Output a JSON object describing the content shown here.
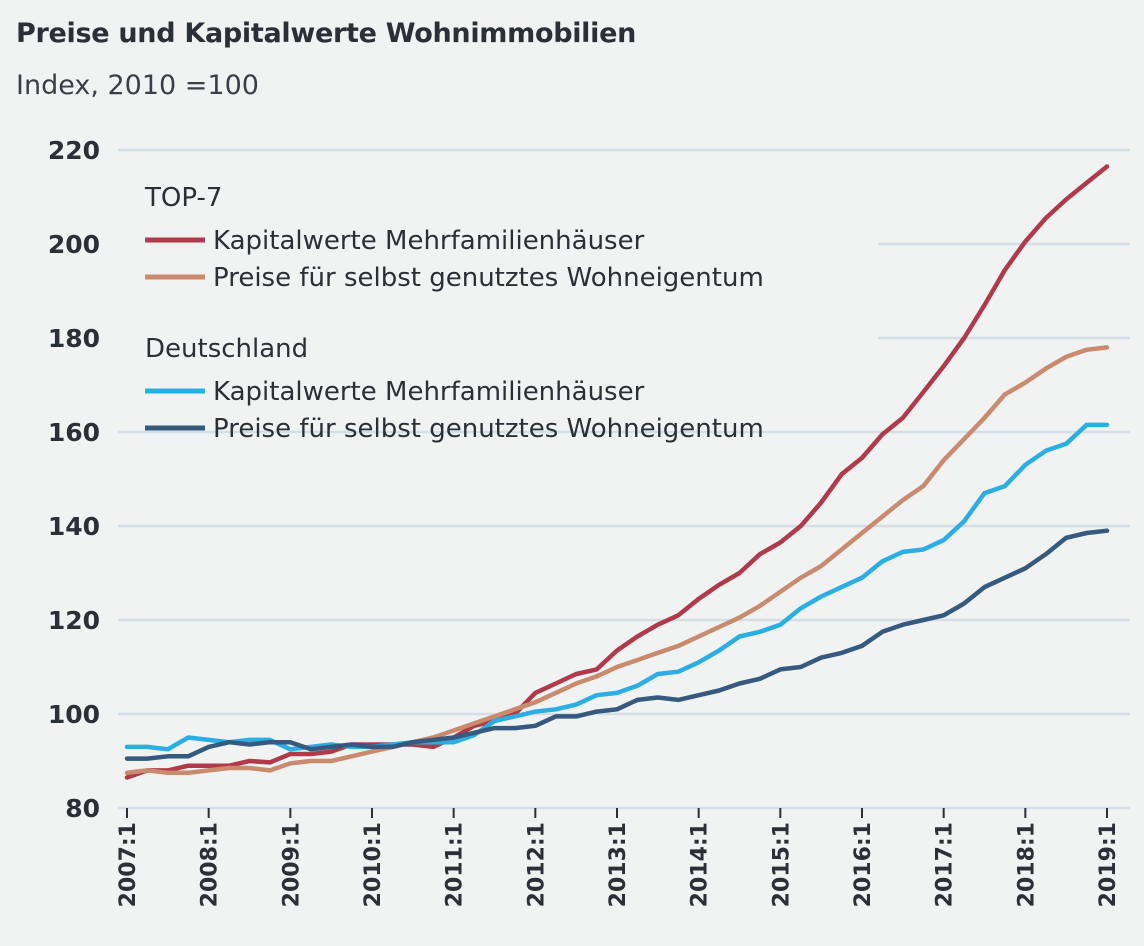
{
  "chart_data": {
    "type": "line",
    "title": "Preise und Kapitalwerte Wohnimmobilien",
    "subtitle": "Index, 2010 =100",
    "xlabel": "",
    "ylabel": "",
    "ylim": [
      80,
      220
    ],
    "yticks": [
      "80",
      "100",
      "120",
      "140",
      "160",
      "180",
      "200",
      "220"
    ],
    "xticks": [
      "2007:1",
      "2008:1",
      "2009:1",
      "2010:1",
      "2011:1",
      "2012:1",
      "2013:1",
      "2014:1",
      "2015:1",
      "2016:1",
      "2017:1",
      "2018:1",
      "2019:1"
    ],
    "x_start": "2007:1",
    "x_end": "2019:1",
    "x_frequency": "quarterly",
    "grid": "horizontal",
    "legend_position": "top-left",
    "legend_groups": [
      {
        "label": "TOP-7",
        "series": [
          0,
          1
        ]
      },
      {
        "label": "Deutschland",
        "series": [
          2,
          3
        ]
      }
    ],
    "series": [
      {
        "name": "Kapitalwerte Mehrfamilienhäuser",
        "group": "TOP-7",
        "color": "#b03a4a",
        "values": [
          86.5,
          88,
          88,
          89,
          89,
          89,
          90,
          89.7,
          91.5,
          91.5,
          92,
          93.5,
          93.5,
          93.5,
          93.5,
          93,
          95,
          97.5,
          98.5,
          100,
          104.5,
          106.5,
          108.5,
          109.5,
          113.5,
          116.5,
          119,
          121,
          124.5,
          127.5,
          130,
          134,
          136.5,
          140,
          145,
          151,
          154.5,
          159.5,
          163,
          168.5,
          174,
          180,
          187,
          194.5,
          200.5,
          205.5,
          209.5,
          213,
          216.5
        ]
      },
      {
        "name": "Preise für selbst genutztes Wohneigentum",
        "group": "TOP-7",
        "color": "#c98a6e",
        "values": [
          87.5,
          88,
          87.5,
          87.5,
          88,
          88.5,
          88.5,
          88,
          89.5,
          90,
          90,
          91,
          92,
          93,
          94,
          95,
          96.5,
          98,
          99.5,
          101,
          102.5,
          104.5,
          106.5,
          108,
          110,
          111.5,
          113,
          114.5,
          116.5,
          118.5,
          120.5,
          123,
          126,
          129,
          131.5,
          135,
          138.5,
          142,
          145.5,
          148.5,
          154,
          158.5,
          163,
          168,
          170.5,
          173.5,
          176,
          177.5,
          178
        ]
      },
      {
        "name": "Kapitalwerte Mehrfamilienhäuser",
        "group": "Deutschland",
        "color": "#2aaee3",
        "values": [
          93,
          93,
          92.5,
          95,
          94.5,
          94,
          94.5,
          94.5,
          92.5,
          93,
          93.5,
          93,
          93,
          93.5,
          94,
          94,
          94,
          95.5,
          98.5,
          99.5,
          100.5,
          101,
          102,
          104,
          104.5,
          106,
          108.5,
          109,
          111,
          113.5,
          116.5,
          117.5,
          119,
          122.5,
          125,
          127,
          129,
          132.5,
          134.5,
          135,
          137,
          141,
          147,
          148.5,
          153,
          156,
          157.5,
          161.5,
          161.5
        ]
      },
      {
        "name": "Preise für selbst genutztes Wohneigentum",
        "group": "Deutschland",
        "color": "#35597f",
        "values": [
          90.5,
          90.5,
          91,
          91,
          93,
          94,
          93.5,
          94,
          94,
          92.5,
          93,
          93.5,
          93,
          93,
          94,
          94.5,
          95,
          96,
          97,
          97,
          97.5,
          99.5,
          99.5,
          100.5,
          101,
          103,
          103.5,
          103,
          104,
          105,
          106.5,
          107.5,
          109.5,
          110,
          112,
          113,
          114.5,
          117.5,
          119,
          120,
          121,
          123.5,
          127,
          129,
          131,
          134,
          137.5,
          138.5,
          139
        ]
      }
    ]
  }
}
